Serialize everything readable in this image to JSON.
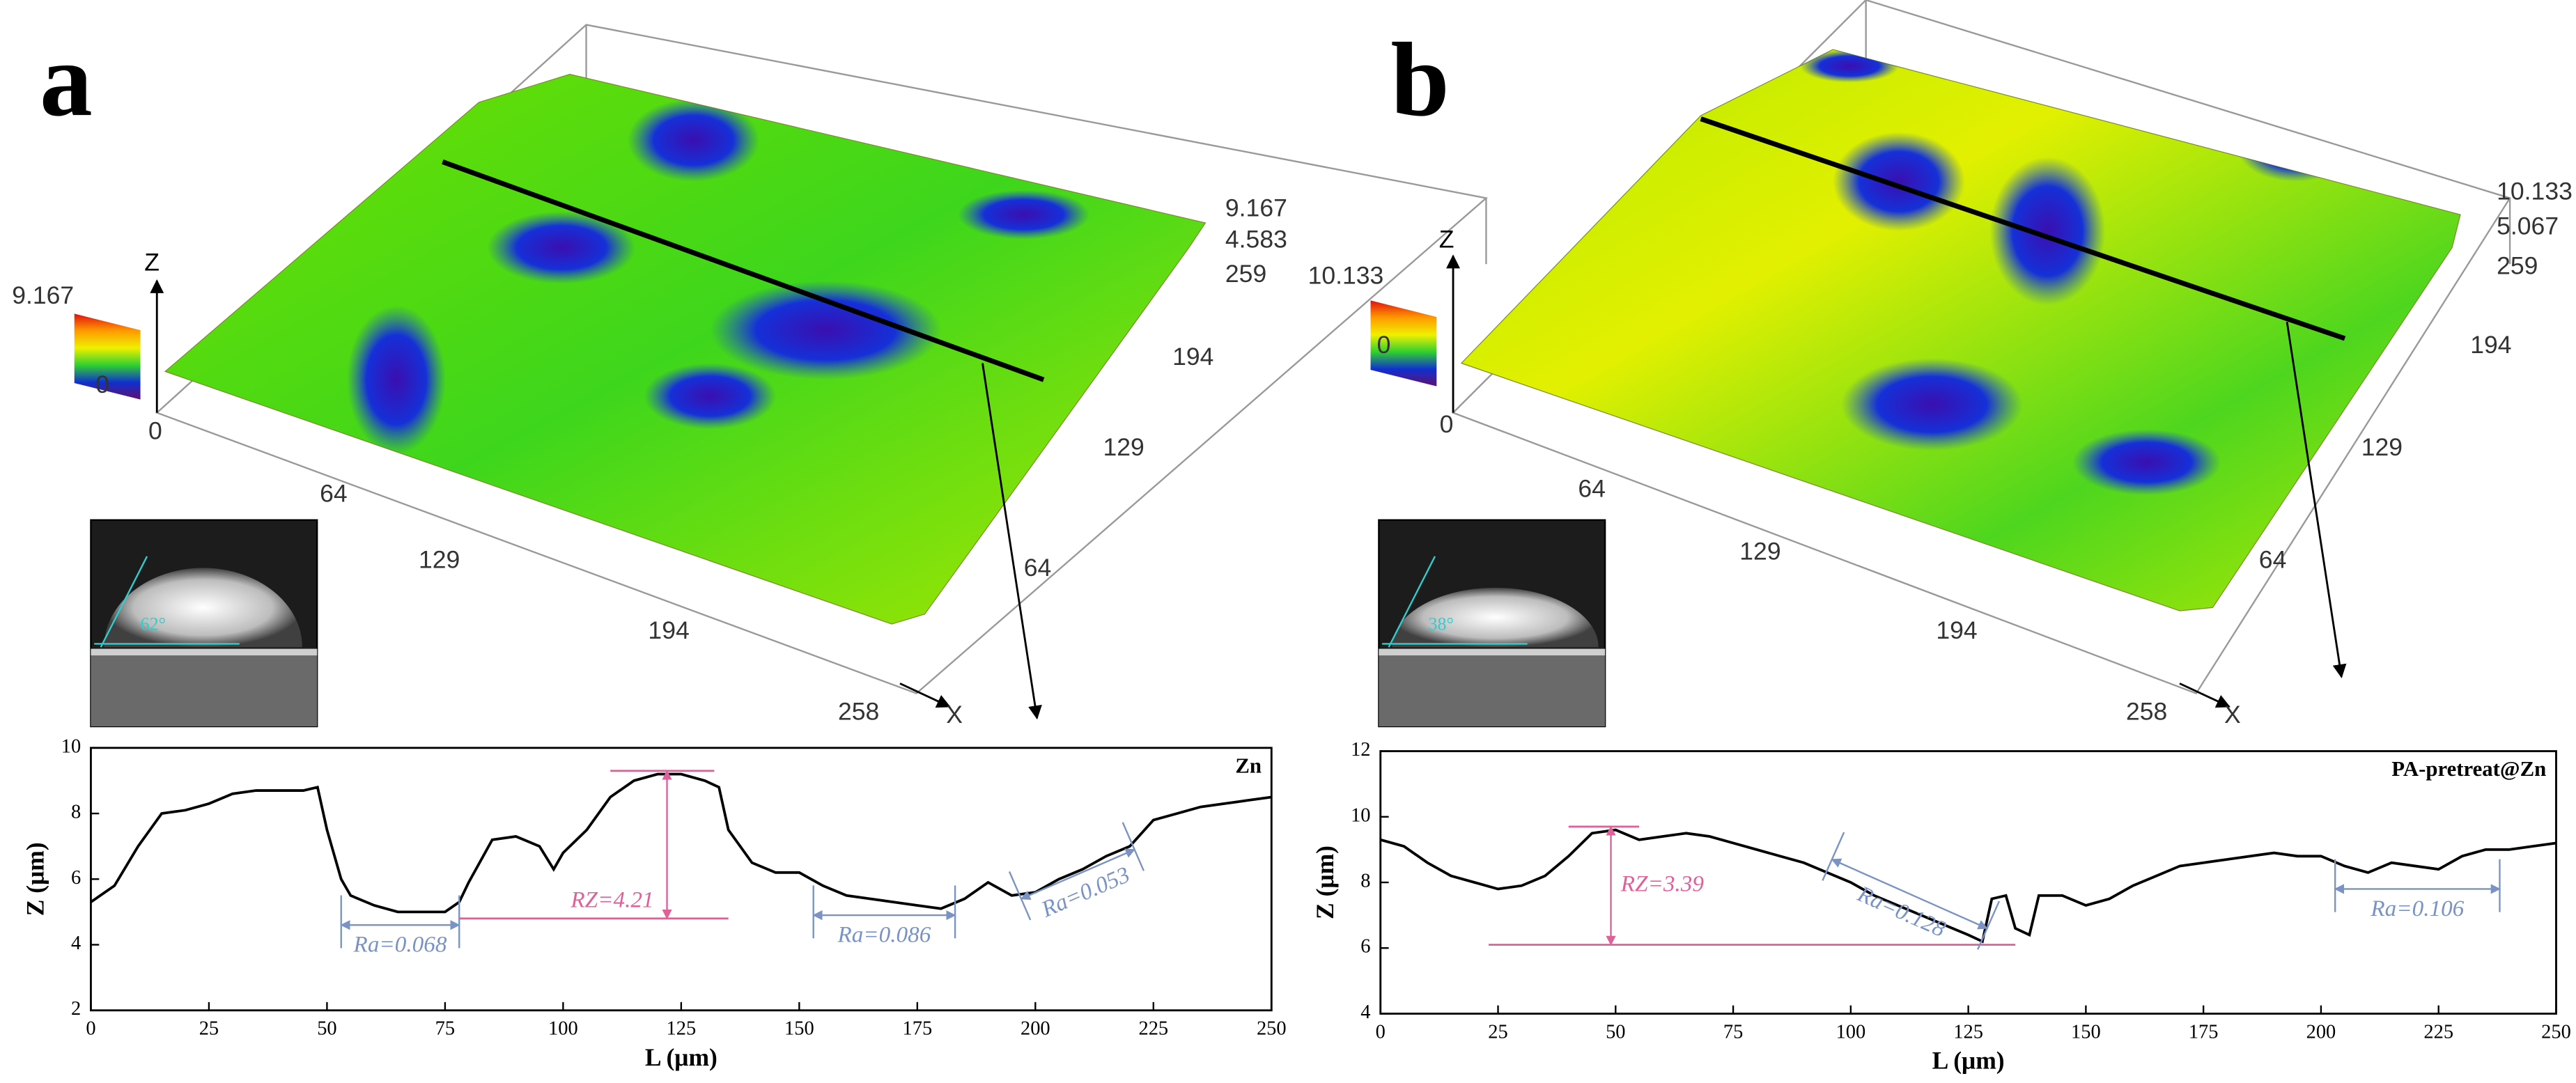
{
  "chart_data": [
    {
      "type": "surface",
      "panel": "a",
      "zlabel": "Z",
      "xlabel": "X",
      "xticks": [
        0,
        64,
        129,
        194,
        258
      ],
      "yticks": [
        64,
        129,
        194,
        259
      ],
      "zticks": [
        4.583,
        9.167
      ],
      "colorbar_ticks": [
        0,
        9.167
      ],
      "inset_angle": "62°"
    },
    {
      "type": "line",
      "xlabel": "L (μm)",
      "ylabel": "Z (μm)",
      "xlim": [
        0,
        250
      ],
      "xticks": [
        0,
        25,
        50,
        75,
        100,
        125,
        150,
        175,
        200,
        225,
        250
      ],
      "ylim": [
        2,
        10
      ],
      "yticks": [
        2,
        4,
        6,
        8,
        10
      ],
      "x": [
        0,
        5,
        10,
        15,
        20,
        25,
        30,
        35,
        40,
        45,
        48,
        50,
        53,
        55,
        60,
        65,
        70,
        75,
        78,
        80,
        85,
        90,
        95,
        98,
        100,
        105,
        110,
        115,
        120,
        125,
        130,
        133,
        135,
        140,
        145,
        150,
        155,
        160,
        165,
        170,
        175,
        180,
        185,
        190,
        195,
        200,
        205,
        210,
        215,
        220,
        225,
        230,
        235,
        240,
        245,
        250
      ],
      "series": [
        {
          "name": "Zn",
          "color": "#000000",
          "values": [
            5.3,
            5.8,
            7.0,
            8.0,
            8.1,
            8.3,
            8.6,
            8.7,
            8.7,
            8.7,
            8.8,
            7.5,
            6.0,
            5.5,
            5.2,
            5.0,
            5.0,
            5.0,
            5.3,
            5.9,
            7.2,
            7.3,
            7.0,
            6.3,
            6.8,
            7.5,
            8.5,
            9.0,
            9.2,
            9.2,
            9.0,
            8.8,
            7.5,
            6.5,
            6.2,
            6.2,
            5.8,
            5.5,
            5.4,
            5.3,
            5.2,
            5.1,
            5.4,
            5.9,
            5.5,
            5.6,
            6.0,
            6.3,
            6.7,
            7.0,
            7.8,
            8.0,
            8.2,
            8.3,
            8.4,
            8.5
          ]
        }
      ],
      "annotations": [
        {
          "kind": "Ra",
          "label": "Ra=0.068",
          "x": [
            53,
            78
          ],
          "y": [
            4.6,
            4.6
          ]
        },
        {
          "kind": "Rz",
          "label": "RZ=4.21",
          "x": 122,
          "y": [
            4.8,
            9.3
          ],
          "base": [
            78,
            135
          ],
          "top": [
            110,
            132
          ]
        },
        {
          "kind": "Ra",
          "label": "Ra=0.086",
          "x": [
            153,
            183
          ],
          "y": [
            4.9,
            4.9
          ]
        },
        {
          "kind": "Ra",
          "label": "Ra=0.053",
          "x": [
            197,
            221
          ],
          "y": [
            5.4,
            6.9
          ]
        }
      ]
    },
    {
      "type": "surface",
      "panel": "b",
      "zlabel": "Z",
      "xlabel": "X",
      "xticks": [
        0,
        64,
        129,
        194,
        258
      ],
      "yticks": [
        64,
        129,
        194,
        259
      ],
      "zticks": [
        5.067,
        10.133
      ],
      "colorbar_ticks": [
        0,
        10.133
      ],
      "inset_angle": "38°"
    },
    {
      "type": "line",
      "xlabel": "L (μm)",
      "ylabel": "Z (μm)",
      "xlim": [
        0,
        250
      ],
      "xticks": [
        0,
        25,
        50,
        75,
        100,
        125,
        150,
        175,
        200,
        225,
        250
      ],
      "ylim": [
        4,
        12
      ],
      "yticks": [
        4,
        6,
        8,
        10,
        12
      ],
      "x": [
        0,
        5,
        10,
        15,
        20,
        25,
        30,
        35,
        40,
        45,
        50,
        55,
        60,
        65,
        70,
        75,
        80,
        85,
        90,
        95,
        100,
        105,
        110,
        115,
        120,
        125,
        128,
        130,
        133,
        135,
        138,
        140,
        145,
        150,
        155,
        160,
        165,
        170,
        175,
        180,
        185,
        190,
        195,
        200,
        205,
        210,
        215,
        220,
        225,
        230,
        235,
        240,
        245,
        250
      ],
      "series": [
        {
          "name": "PA-pretreat@Zn",
          "color": "#000000",
          "values": [
            9.3,
            9.1,
            8.6,
            8.2,
            8.0,
            7.8,
            7.9,
            8.2,
            8.8,
            9.5,
            9.6,
            9.3,
            9.4,
            9.5,
            9.4,
            9.2,
            9.0,
            8.8,
            8.6,
            8.3,
            8.0,
            7.6,
            7.3,
            7.0,
            6.7,
            6.4,
            6.2,
            7.5,
            7.6,
            6.6,
            6.4,
            7.6,
            7.6,
            7.3,
            7.5,
            7.9,
            8.2,
            8.5,
            8.6,
            8.7,
            8.8,
            8.9,
            8.8,
            8.8,
            8.5,
            8.3,
            8.6,
            8.5,
            8.4,
            8.8,
            9.0,
            9.0,
            9.1,
            9.2
          ]
        }
      ],
      "annotations": [
        {
          "kind": "Rz",
          "label": "RZ=3.39",
          "x": 49,
          "y": [
            6.1,
            9.7
          ],
          "base": [
            23,
            135
          ],
          "top": [
            40,
            55
          ]
        },
        {
          "kind": "Ra",
          "label": "Ra=0.128",
          "x": [
            96,
            129
          ],
          "y": [
            8.7,
            6.6
          ]
        },
        {
          "kind": "Ra",
          "label": "Ra=0.106",
          "x": [
            203,
            238
          ],
          "y": [
            7.8,
            7.8
          ]
        }
      ]
    }
  ]
}
